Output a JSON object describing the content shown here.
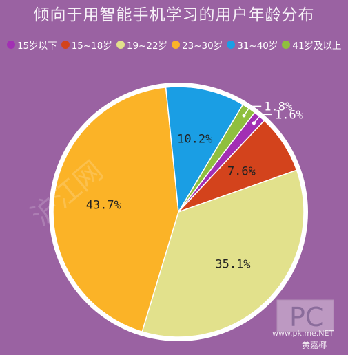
{
  "chart_data": {
    "type": "pie",
    "title": "倾向于用智能手机学习的用户年龄分布",
    "categories": [
      "15岁以下",
      "15~18岁",
      "19~22岁",
      "23~30岁",
      "31~40岁",
      "41岁及以上"
    ],
    "values": [
      1.6,
      7.6,
      35.1,
      43.7,
      10.2,
      1.8
    ],
    "value_labels": [
      "1.6%",
      "7.6%",
      "35.1%",
      "43.7%",
      "10.2%",
      "1.8%"
    ],
    "colors": [
      "#a22fb4",
      "#d3431c",
      "#e2e18c",
      "#fbb327",
      "#1a9ee4",
      "#8fbf3e"
    ],
    "legend_position": "top"
  },
  "watermark": {
    "brand": "沪江网",
    "corner_text": "www.pk.me.NET",
    "signature": "黄嘉椰"
  }
}
